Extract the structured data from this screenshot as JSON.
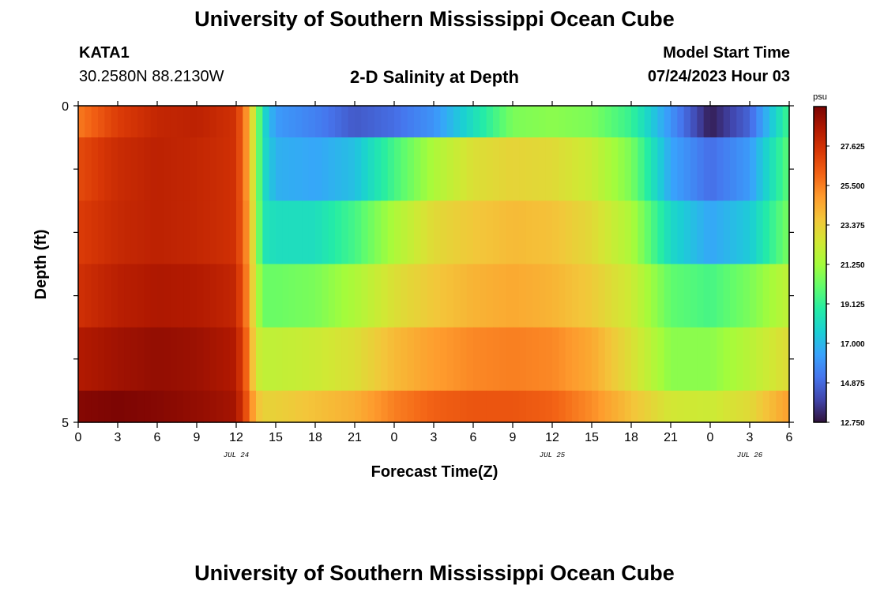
{
  "page": {
    "title_top": "University of Southern Mississippi Ocean Cube",
    "title_bottom": "University of Southern Mississippi Ocean Cube",
    "station_name": "KATA1",
    "station_coords": "30.2580N  88.2130W",
    "chart_title": "2-D Salinity at Depth",
    "model_label": "Model Start Time",
    "model_time": "07/24/2023 Hour 03"
  },
  "chart_data": {
    "type": "heatmap",
    "title": "2-D Salinity at Depth",
    "xlabel": "Forecast Time(Z)",
    "ylabel": "Depth (ft)",
    "x_hours": [
      0,
      54
    ],
    "x_tick_labels": [
      "0",
      "3",
      "6",
      "9",
      "12",
      "15",
      "18",
      "21",
      "0",
      "3",
      "6",
      "9",
      "12",
      "15",
      "18",
      "21",
      "0",
      "3",
      "6"
    ],
    "date_labels": [
      {
        "hour": 12,
        "label": "JUL 24"
      },
      {
        "hour": 36,
        "label": "JUL 25"
      },
      {
        "hour": 51,
        "label": "JUL 26"
      }
    ],
    "y_range": [
      0,
      5
    ],
    "y_tick_labels": [
      "0",
      "5"
    ],
    "colorbar": {
      "unit": "psu",
      "min": 12.75,
      "max": 29.75,
      "labels": [
        "27.625",
        "25.500",
        "23.375",
        "21.250",
        "19.125",
        "17.000",
        "14.875",
        "12.750"
      ],
      "colormap": [
        "#30123b",
        "#4145ab",
        "#4675ed",
        "#39a2fc",
        "#1bcfd4",
        "#24eca6",
        "#61fc6c",
        "#a4fc3b",
        "#d1e834",
        "#f3c63a",
        "#fe9b2d",
        "#f36315",
        "#d93806",
        "#b11901",
        "#7a0403"
      ]
    },
    "layers": [
      {
        "depth": [
          0,
          0.5
        ],
        "x": [
          0,
          3,
          6,
          9,
          12,
          12.8,
          13.5,
          14,
          15,
          18,
          21,
          24,
          27,
          30,
          33,
          36,
          39,
          42,
          45,
          48,
          51,
          54
        ],
        "values": [
          25.6,
          27.2,
          28.0,
          28.2,
          27.6,
          25.0,
          21.5,
          18.2,
          16.2,
          15.5,
          14.5,
          15.0,
          16.0,
          18.2,
          20.5,
          20.8,
          20.5,
          19.2,
          16.0,
          13.0,
          14.8,
          19.5
        ]
      },
      {
        "depth": [
          0.5,
          1.5
        ],
        "x": [
          0,
          3,
          6,
          9,
          12,
          12.8,
          13.5,
          14,
          15,
          18,
          21,
          24,
          27,
          30,
          33,
          36,
          39,
          42,
          45,
          48,
          51,
          54
        ],
        "values": [
          26.8,
          27.8,
          28.2,
          28.0,
          27.6,
          25.0,
          21.5,
          18.3,
          16.8,
          16.5,
          17.2,
          19.5,
          21.5,
          22.8,
          23.2,
          23.0,
          22.2,
          20.5,
          16.5,
          15.0,
          16.2,
          20.0
        ]
      },
      {
        "depth": [
          1.5,
          2.5
        ],
        "x": [
          0,
          3,
          6,
          9,
          12,
          12.8,
          13.5,
          14,
          15,
          18,
          21,
          24,
          27,
          30,
          33,
          36,
          39,
          42,
          45,
          48,
          51,
          54
        ],
        "values": [
          27.2,
          27.9,
          28.2,
          28.0,
          27.6,
          25.2,
          21.8,
          18.5,
          18.2,
          18.2,
          19.5,
          21.5,
          23.0,
          23.6,
          24.0,
          23.8,
          23.0,
          21.5,
          18.0,
          16.5,
          17.5,
          20.5
        ]
      },
      {
        "depth": [
          2.5,
          3.5
        ],
        "x": [
          0,
          3,
          6,
          9,
          12,
          12.8,
          13.5,
          14,
          15,
          18,
          21,
          24,
          27,
          30,
          33,
          36,
          39,
          42,
          45,
          48,
          51,
          54
        ],
        "values": [
          27.6,
          28.3,
          28.6,
          28.5,
          28.0,
          25.5,
          22.0,
          20.2,
          20.2,
          20.5,
          21.5,
          22.8,
          23.6,
          24.2,
          24.5,
          24.2,
          23.5,
          22.3,
          20.0,
          19.5,
          20.5,
          22.0
        ]
      },
      {
        "depth": [
          3.5,
          4.5
        ],
        "x": [
          0,
          3,
          6,
          9,
          12,
          12.8,
          13.5,
          14,
          15,
          18,
          21,
          24,
          27,
          30,
          33,
          36,
          39,
          42,
          45,
          48,
          51,
          54
        ],
        "values": [
          28.5,
          28.9,
          29.2,
          29.0,
          28.5,
          26.0,
          22.5,
          22.0,
          22.0,
          22.3,
          22.8,
          24.0,
          24.8,
          25.3,
          25.5,
          25.3,
          24.5,
          22.8,
          20.8,
          20.8,
          21.8,
          23.0
        ]
      },
      {
        "depth": [
          4.5,
          5
        ],
        "x": [
          0,
          3,
          6,
          9,
          12,
          12.8,
          13.5,
          14,
          15,
          18,
          21,
          24,
          27,
          30,
          33,
          36,
          39,
          42,
          45,
          48,
          51,
          54
        ],
        "values": [
          29.5,
          29.7,
          29.5,
          29.2,
          28.8,
          26.5,
          24.0,
          23.3,
          23.3,
          23.8,
          24.3,
          25.5,
          26.2,
          26.5,
          26.5,
          26.2,
          25.2,
          23.8,
          22.5,
          22.3,
          23.0,
          24.8
        ]
      }
    ]
  }
}
